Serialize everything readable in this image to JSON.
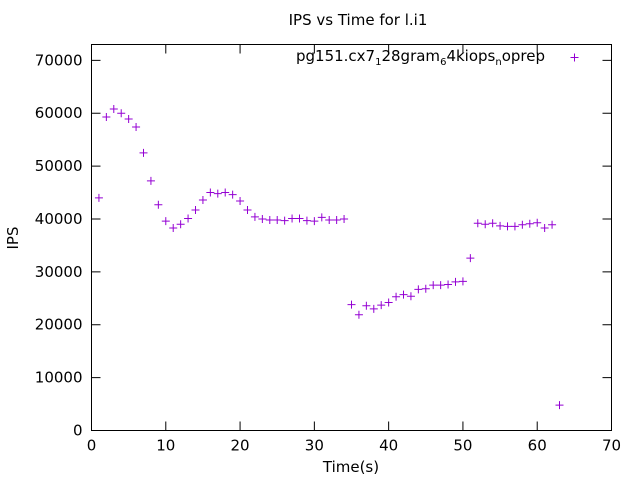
{
  "chart_data": {
    "type": "scatter",
    "title": "IPS vs Time for l.i1",
    "xlabel": "Time(s)",
    "ylabel": "IPS",
    "xlim": [
      0,
      70
    ],
    "ylim": [
      0,
      73000
    ],
    "x_ticks": [
      0,
      10,
      20,
      30,
      40,
      50,
      60,
      70
    ],
    "y_ticks": [
      0,
      10000,
      20000,
      30000,
      40000,
      50000,
      60000,
      70000
    ],
    "grid": false,
    "legend_position": "top-right",
    "marker": "+",
    "series": [
      {
        "name": "pg151.cx7_128gram_64kiops_noprep",
        "name_parts": [
          {
            "text": "pg151.cx7",
            "sub": false
          },
          {
            "text": "1",
            "sub": true
          },
          {
            "text": "28gram",
            "sub": false
          },
          {
            "text": "6",
            "sub": true
          },
          {
            "text": "4kiops",
            "sub": false
          },
          {
            "text": "n",
            "sub": true
          },
          {
            "text": "oprep",
            "sub": false
          }
        ],
        "color": "#9400d3",
        "points": [
          [
            1,
            44000
          ],
          [
            2,
            59300
          ],
          [
            3,
            60800
          ],
          [
            4,
            60000
          ],
          [
            5,
            58900
          ],
          [
            6,
            57400
          ],
          [
            7,
            52500
          ],
          [
            8,
            47200
          ],
          [
            9,
            42700
          ],
          [
            10,
            39600
          ],
          [
            11,
            38300
          ],
          [
            12,
            39000
          ],
          [
            13,
            40100
          ],
          [
            14,
            41700
          ],
          [
            15,
            43600
          ],
          [
            16,
            45000
          ],
          [
            17,
            44800
          ],
          [
            18,
            45000
          ],
          [
            19,
            44600
          ],
          [
            20,
            43400
          ],
          [
            21,
            41700
          ],
          [
            22,
            40400
          ],
          [
            23,
            40000
          ],
          [
            24,
            39800
          ],
          [
            25,
            39800
          ],
          [
            26,
            39700
          ],
          [
            27,
            40100
          ],
          [
            28,
            40100
          ],
          [
            29,
            39700
          ],
          [
            30,
            39600
          ],
          [
            31,
            40300
          ],
          [
            32,
            39800
          ],
          [
            33,
            39800
          ],
          [
            34,
            40000
          ],
          [
            35,
            23800
          ],
          [
            36,
            21900
          ],
          [
            37,
            23600
          ],
          [
            38,
            23000
          ],
          [
            39,
            23700
          ],
          [
            40,
            24200
          ],
          [
            41,
            25300
          ],
          [
            42,
            25700
          ],
          [
            43,
            25400
          ],
          [
            44,
            26700
          ],
          [
            45,
            26800
          ],
          [
            46,
            27500
          ],
          [
            47,
            27500
          ],
          [
            48,
            27600
          ],
          [
            49,
            28100
          ],
          [
            50,
            28200
          ],
          [
            51,
            32600
          ],
          [
            52,
            39200
          ],
          [
            53,
            39000
          ],
          [
            54,
            39200
          ],
          [
            55,
            38700
          ],
          [
            56,
            38600
          ],
          [
            57,
            38600
          ],
          [
            58,
            38900
          ],
          [
            59,
            39100
          ],
          [
            60,
            39300
          ],
          [
            61,
            38300
          ],
          [
            62,
            38900
          ],
          [
            63,
            4800
          ]
        ]
      }
    ]
  }
}
